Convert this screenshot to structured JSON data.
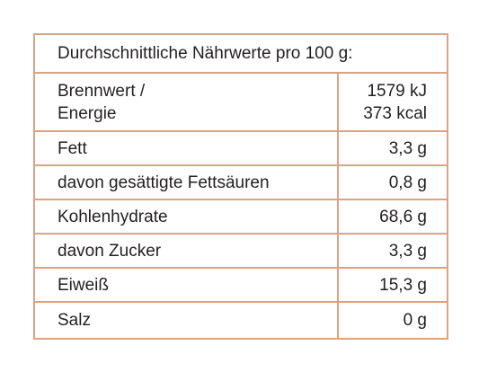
{
  "header": {
    "title": "Durchschnittliche Nährwerte pro 100 g:"
  },
  "table": {
    "rows": [
      {
        "label": [
          "Brennwert /",
          "Energie"
        ],
        "value": [
          "1579 kJ",
          "373 kcal"
        ]
      },
      {
        "label": "Fett",
        "value": "3,3 g"
      },
      {
        "label": "davon gesättigte Fettsäuren",
        "value": "0,8 g"
      },
      {
        "label": "Kohlenhydrate",
        "value": "68,6 g"
      },
      {
        "label": "davon Zucker",
        "value": "3,3 g"
      },
      {
        "label": "Eiweiß",
        "value": "15,3 g"
      },
      {
        "label": "Salz",
        "value": "0 g"
      }
    ]
  }
}
